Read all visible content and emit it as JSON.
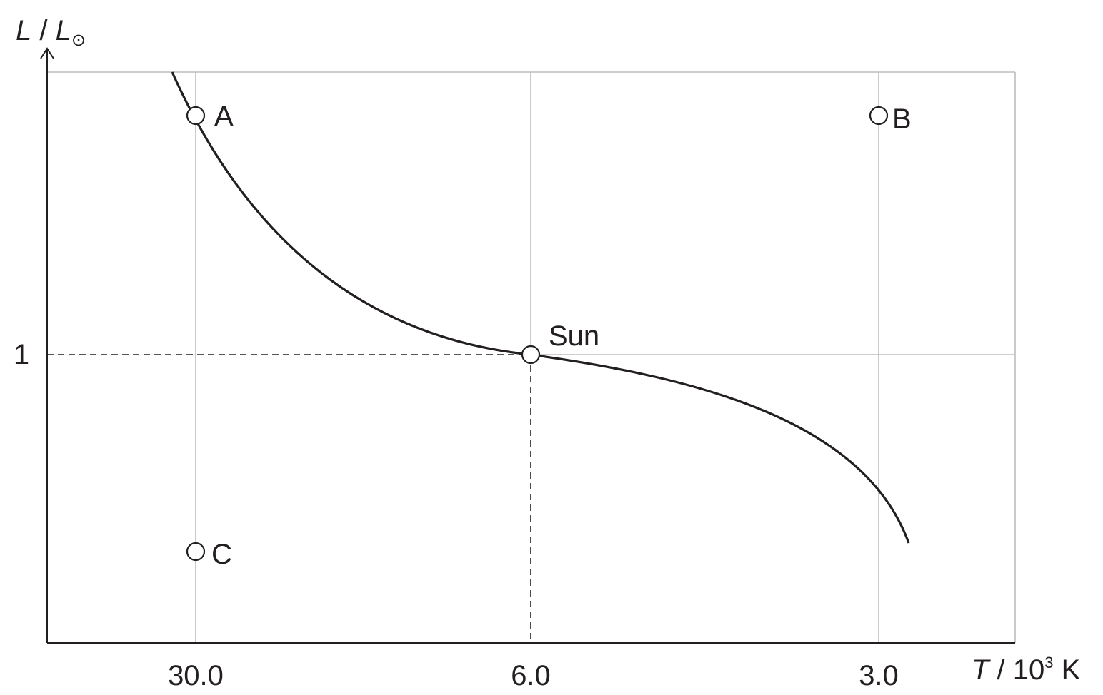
{
  "chart_data": {
    "type": "scatter",
    "title": "",
    "xlabel_italic": "T",
    "xlabel_rest": " / 10",
    "xlabel_sup": "3",
    "xlabel_unit": " K",
    "ylabel_italic_1": "L",
    "ylabel_sep": " / ",
    "ylabel_italic_2": "L",
    "ylabel_sub": "⊙",
    "x_ticks": [
      "30.0",
      "6.0",
      "3.0"
    ],
    "y_ticks": [
      "1"
    ],
    "x_axis_reversed": true,
    "grid": true,
    "points": [
      {
        "label": "A",
        "x": "30.0",
        "y": "above 1"
      },
      {
        "label": "B",
        "x": "3.0",
        "y": "above 1"
      },
      {
        "label": "C",
        "x": "30.0",
        "y": "below 1"
      },
      {
        "label": "Sun",
        "x": "6.0",
        "y": "1"
      }
    ],
    "series": [
      {
        "name": "",
        "style": "solid curve passing through Sun"
      }
    ],
    "reference_lines": "dashed lines from Sun to each axis"
  }
}
